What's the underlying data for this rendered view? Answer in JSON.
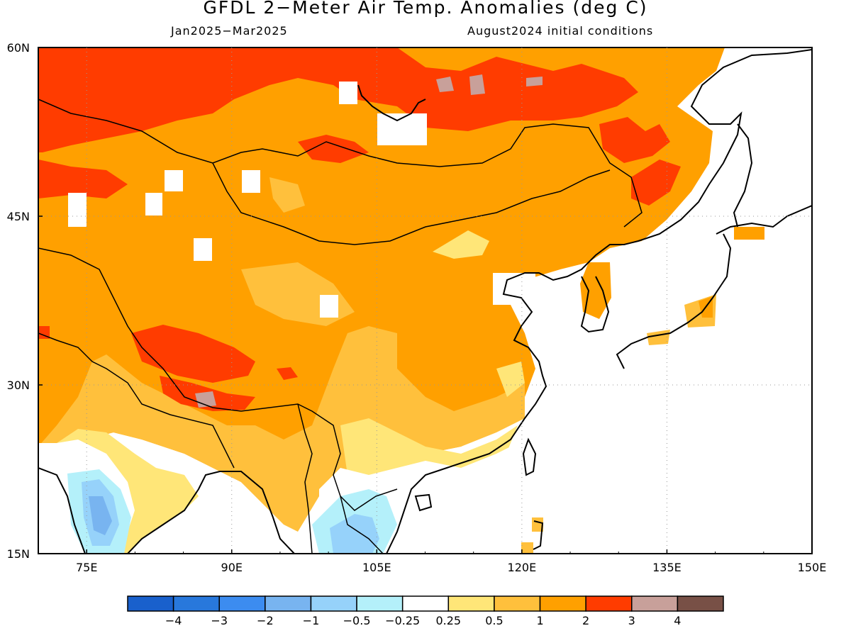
{
  "header": {
    "title": "GFDL 2−Meter Air Temp. Anomalies (deg C)",
    "period": "Jan2025−Mar2025",
    "initial_conditions": "August2024 initial conditions"
  },
  "axes": {
    "lat_labels": [
      "60N",
      "45N",
      "30N",
      "15N"
    ],
    "lon_labels": [
      "75E",
      "90E",
      "105E",
      "120E",
      "135E",
      "150E"
    ]
  },
  "colorbar": {
    "colors": [
      "#1960cc",
      "#2878dc",
      "#3c8cf0",
      "#78b4f0",
      "#96d2fa",
      "#b4f0fa",
      "#ffffff",
      "#ffe678",
      "#ffc03c",
      "#ffa000",
      "#ff3c00",
      "#c8a09a",
      "#785046"
    ],
    "labels": [
      "−4",
      "−3",
      "−2",
      "−1",
      "−0.5",
      "−0.25",
      "0.25",
      "0.5",
      "1",
      "2",
      "3",
      "4"
    ]
  },
  "chart_data": {
    "type": "heatmap",
    "title": "GFDL 2−Meter Air Temp. Anomalies (deg C)",
    "period": "Jan2025−Mar2025",
    "initial_conditions": "August2024 initial conditions",
    "lon_range": [
      70,
      150
    ],
    "lat_range": [
      15,
      60
    ],
    "lon_ticks": [
      75,
      90,
      105,
      120,
      135,
      150
    ],
    "lat_ticks": [
      15,
      30,
      45,
      60
    ],
    "color_levels": [
      -4,
      -3,
      -2,
      -1,
      -0.5,
      -0.25,
      0.25,
      0.5,
      1,
      2,
      3,
      4
    ],
    "units": "deg C",
    "grid": true,
    "ocean_masked": true
  }
}
